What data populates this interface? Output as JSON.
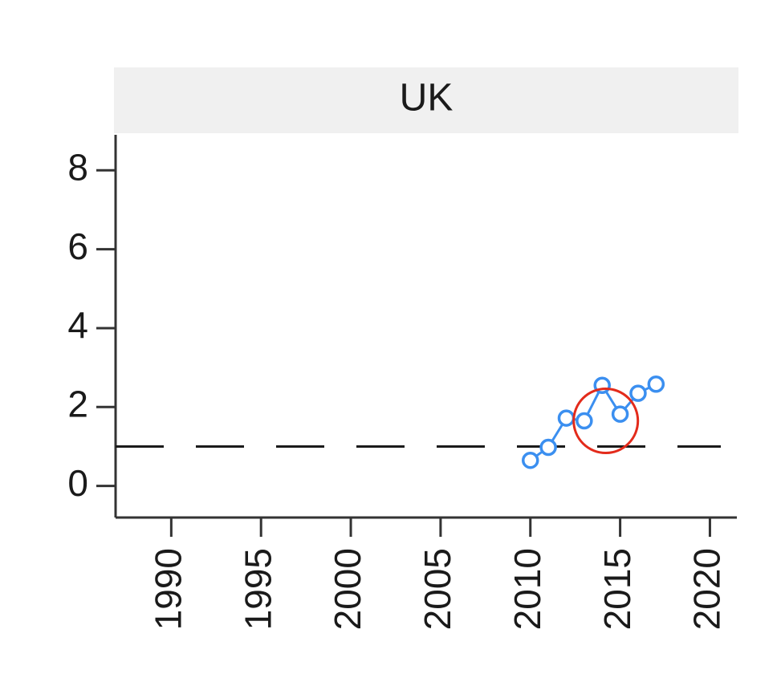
{
  "chart_data": {
    "type": "line",
    "title": "UK",
    "xlabel": "",
    "ylabel": "",
    "xlim": [
      1986.9,
      2021.5
    ],
    "ylim": [
      -0.8,
      8.9
    ],
    "x_ticks": [
      "1990",
      "1995",
      "2000",
      "2005",
      "2010",
      "2015",
      "2020"
    ],
    "y_ticks": [
      "0",
      "2",
      "4",
      "6",
      "8"
    ],
    "x_tick_values": [
      1990,
      1995,
      2000,
      2005,
      2010,
      2015,
      2020
    ],
    "y_tick_values": [
      0,
      2,
      4,
      6,
      8
    ],
    "grid": false,
    "legend": "none",
    "reference_line": {
      "y": 1,
      "style": "dashed",
      "color": "#1a1a1a"
    },
    "series": [
      {
        "color": "#3b8ff0",
        "marker": "open-circle",
        "x": [
          2010,
          2011,
          2012,
          2013,
          2014,
          2015,
          2016,
          2017
        ],
        "y": [
          0.65,
          0.98,
          1.72,
          1.65,
          2.55,
          1.82,
          2.35,
          2.58
        ]
      }
    ],
    "annotation": {
      "shape": "circle",
      "color": "#e32b1b",
      "x": 2014.2,
      "y": 1.65
    }
  }
}
